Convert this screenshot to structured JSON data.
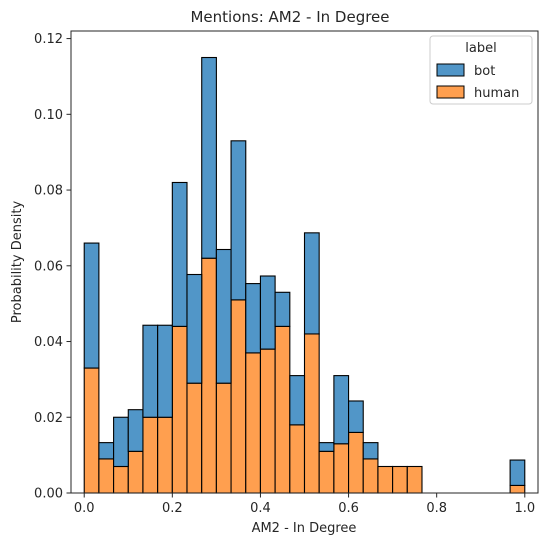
{
  "chart_data": {
    "type": "bar",
    "stacked": true,
    "title": "Mentions: AM2 - In Degree",
    "xlabel": "AM2 - In Degree",
    "ylabel": "Probability Density",
    "xlim": [
      -0.03,
      1.03
    ],
    "ylim": [
      0,
      0.122
    ],
    "xticks": [
      0.0,
      0.2,
      0.4,
      0.6,
      0.8,
      1.0
    ],
    "xtick_labels": [
      "0.0",
      "0.2",
      "0.4",
      "0.6",
      "0.8",
      "1.0"
    ],
    "yticks": [
      0.0,
      0.02,
      0.04,
      0.06,
      0.08,
      0.1,
      0.12
    ],
    "ytick_labels": [
      "0.00",
      "0.02",
      "0.04",
      "0.06",
      "0.08",
      "0.10",
      "0.12"
    ],
    "bin_edges": [
      0.0,
      0.0333,
      0.0667,
      0.1,
      0.1333,
      0.1667,
      0.2,
      0.2333,
      0.2667,
      0.3,
      0.3333,
      0.3667,
      0.4,
      0.4333,
      0.4667,
      0.5,
      0.5333,
      0.5667,
      0.6,
      0.6333,
      0.6667,
      0.7,
      0.7333,
      0.7667,
      0.8,
      0.8333,
      0.8667,
      0.9,
      0.9333,
      0.9667,
      1.0
    ],
    "series": [
      {
        "name": "human",
        "color": "#ff9f4f",
        "values": [
          0.033,
          0.009,
          0.007,
          0.011,
          0.02,
          0.02,
          0.044,
          0.029,
          0.062,
          0.029,
          0.051,
          0.037,
          0.038,
          0.044,
          0.018,
          0.042,
          0.011,
          0.013,
          0.016,
          0.009,
          0.007,
          0.007,
          0.007,
          0,
          0,
          0,
          0,
          0,
          0,
          0.002
        ]
      },
      {
        "name": "bot",
        "color": "#5196c8",
        "values": [
          0.033,
          0.0043,
          0.013,
          0.011,
          0.0243,
          0.0243,
          0.038,
          0.0287,
          0.053,
          0.0353,
          0.042,
          0.0183,
          0.0193,
          0.009,
          0.013,
          0.0267,
          0.0023,
          0.018,
          0.0083,
          0.0043,
          0,
          0,
          0,
          0,
          0,
          0,
          0,
          0,
          0,
          0.0067
        ]
      }
    ],
    "legend": {
      "title": "label",
      "position": "top-right",
      "entries": [
        {
          "name": "bot",
          "color": "#5196c8"
        },
        {
          "name": "human",
          "color": "#ff9f4f"
        }
      ]
    },
    "grid": false
  }
}
